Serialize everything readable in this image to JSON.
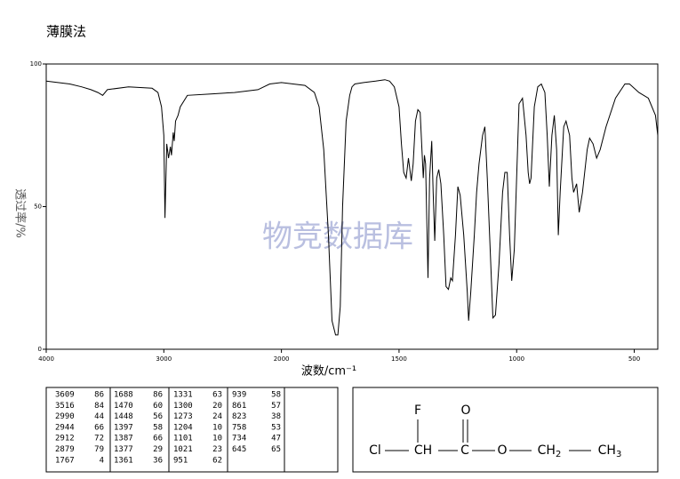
{
  "title": "薄膜法",
  "chart_data": {
    "type": "line",
    "x_label": "波数/cm⁻¹",
    "y_label": "透过率/%",
    "watermark": "物竞数据库",
    "xlim": [
      4000,
      400
    ],
    "x_scale_change": 2000,
    "ylim": [
      0,
      100
    ],
    "xticks": [
      4000,
      3000,
      2000,
      1500,
      1000,
      500
    ],
    "yticks": [
      0,
      50,
      100
    ],
    "x": [
      4000,
      3800,
      3700,
      3620,
      3560,
      3520,
      3480,
      3300,
      3100,
      3050,
      3020,
      3000,
      2990,
      2975,
      2960,
      2944,
      2935,
      2920,
      2912,
      2900,
      2879,
      2860,
      2800,
      2600,
      2400,
      2200,
      2100,
      2000,
      1950,
      1900,
      1860,
      1840,
      1820,
      1800,
      1785,
      1770,
      1760,
      1750,
      1740,
      1725,
      1710,
      1700,
      1688,
      1650,
      1600,
      1560,
      1540,
      1520,
      1500,
      1490,
      1480,
      1470,
      1460,
      1448,
      1440,
      1430,
      1420,
      1410,
      1397,
      1392,
      1387,
      1377,
      1370,
      1361,
      1355,
      1348,
      1340,
      1331,
      1322,
      1310,
      1300,
      1290,
      1280,
      1273,
      1260,
      1250,
      1240,
      1225,
      1210,
      1204,
      1195,
      1180,
      1170,
      1160,
      1145,
      1135,
      1125,
      1110,
      1101,
      1090,
      1075,
      1060,
      1050,
      1040,
      1030,
      1021,
      1010,
      1000,
      990,
      975,
      960,
      951,
      945,
      939,
      925,
      910,
      895,
      880,
      870,
      861,
      850,
      840,
      830,
      823,
      815,
      800,
      790,
      775,
      765,
      758,
      745,
      734,
      720,
      700,
      690,
      675,
      660,
      645,
      620,
      580,
      540,
      520,
      480,
      440,
      410,
      400
    ],
    "series": [
      {
        "name": "spectrum",
        "color": "#000000",
        "values": [
          94,
          93,
          92,
          91,
          90,
          89,
          91,
          92,
          91.5,
          90,
          85,
          75,
          46,
          72,
          67,
          71,
          68,
          76,
          73,
          80,
          82,
          85,
          89,
          89.5,
          90,
          91,
          93,
          93.5,
          93,
          92.5,
          90,
          85,
          70,
          40,
          10,
          5,
          5,
          15,
          50,
          80,
          89,
          92,
          93,
          93.5,
          94,
          94.5,
          94,
          92,
          85,
          72,
          62,
          60,
          67,
          59,
          65,
          80,
          84,
          83,
          60,
          68,
          65,
          25,
          60,
          73,
          55,
          38,
          60,
          63,
          58,
          40,
          22,
          21,
          25,
          24,
          40,
          57,
          54,
          40,
          20,
          10,
          20,
          40,
          55,
          65,
          75,
          78,
          60,
          30,
          11,
          12,
          30,
          55,
          62,
          62,
          40,
          24,
          35,
          60,
          86,
          88,
          75,
          62,
          58,
          60,
          85,
          92,
          93,
          90,
          75,
          57,
          75,
          82,
          70,
          40,
          55,
          78,
          80,
          75,
          60,
          55,
          58,
          48,
          55,
          70,
          74,
          72,
          67,
          70,
          78,
          88,
          93,
          93,
          90,
          88,
          82,
          75
        ]
      }
    ]
  },
  "peak_table": [
    [
      [
        3609,
        86
      ],
      [
        3516,
        84
      ],
      [
        2990,
        44
      ],
      [
        2944,
        66
      ],
      [
        2912,
        72
      ],
      [
        2879,
        79
      ],
      [
        1767,
        4
      ]
    ],
    [
      [
        1688,
        86
      ],
      [
        1470,
        60
      ],
      [
        1448,
        56
      ],
      [
        1397,
        58
      ],
      [
        1387,
        66
      ],
      [
        1377,
        29
      ],
      [
        1361,
        36
      ]
    ],
    [
      [
        1331,
        63
      ],
      [
        1300,
        20
      ],
      [
        1273,
        24
      ],
      [
        1204,
        10
      ],
      [
        1101,
        10
      ],
      [
        1021,
        23
      ],
      [
        951,
        62
      ]
    ],
    [
      [
        939,
        58
      ],
      [
        861,
        57
      ],
      [
        823,
        38
      ],
      [
        758,
        53
      ],
      [
        734,
        47
      ],
      [
        645,
        65
      ]
    ]
  ],
  "structure": {
    "top": [
      "F",
      "O"
    ],
    "chain": [
      "Cl",
      "CH",
      "C",
      "O",
      "CH2",
      "CH3"
    ]
  }
}
